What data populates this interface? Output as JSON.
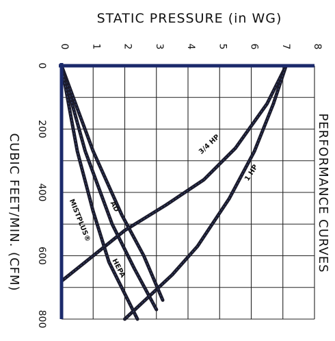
{
  "chart_data": {
    "type": "line",
    "title": "STATIC PRESSURE (in WG)",
    "side_title": "PERFORMANCE CURVES",
    "xlabel": "STATIC PRESSURE (in WG)",
    "ylabel": "CUBIC FEET/MIN. (CFM)",
    "x_axis": {
      "min": 0,
      "max": 8,
      "ticks": [
        "0",
        "1",
        "2",
        "3",
        "4",
        "5",
        "6",
        "7",
        "8"
      ]
    },
    "y_axis": {
      "min": 0,
      "max": 800,
      "ticks": [
        "0",
        "200",
        "400",
        "600",
        "800"
      ],
      "direction": "downward"
    },
    "grid": true,
    "series": [
      {
        "name": "3/4 HP",
        "color": "#1a1a2a",
        "points": [
          [
            7.1,
            0
          ],
          [
            6.5,
            120
          ],
          [
            5.5,
            260
          ],
          [
            4.5,
            360
          ],
          [
            3.3,
            440
          ],
          [
            2.0,
            520
          ],
          [
            1.0,
            600
          ],
          [
            0,
            680
          ]
        ]
      },
      {
        "name": "1 HP",
        "color": "#1a1a2a",
        "points": [
          [
            7.1,
            0
          ],
          [
            6.7,
            120
          ],
          [
            6.1,
            270
          ],
          [
            5.3,
            420
          ],
          [
            4.3,
            570
          ],
          [
            3.5,
            660
          ],
          [
            2.0,
            800
          ]
        ]
      },
      {
        "name": "AD",
        "color": "#1a1a2a",
        "points": [
          [
            0,
            0
          ],
          [
            1.0,
            270
          ],
          [
            1.9,
            470
          ],
          [
            2.6,
            600
          ],
          [
            3.2,
            740
          ]
        ]
      },
      {
        "name": "HEPA",
        "color": "#1a1a2a",
        "points": [
          [
            0,
            0
          ],
          [
            0.75,
            270
          ],
          [
            1.6,
            500
          ],
          [
            2.3,
            640
          ],
          [
            3.0,
            770
          ]
        ]
      },
      {
        "name": "MISTPLUS®",
        "color": "#1a1a2a",
        "points": [
          [
            0,
            0
          ],
          [
            0.5,
            270
          ],
          [
            1.0,
            460
          ],
          [
            1.5,
            620
          ],
          [
            2.4,
            800
          ]
        ]
      }
    ]
  }
}
